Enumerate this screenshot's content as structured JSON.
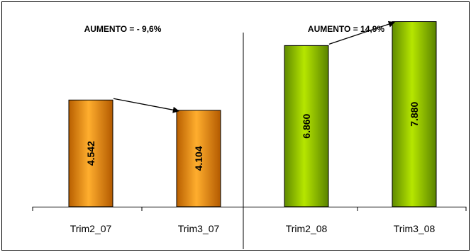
{
  "chart_data": {
    "type": "bar",
    "categories": [
      "Trim2_07",
      "Trim3_07",
      "Trim2_08",
      "Trim3_08"
    ],
    "values": [
      4542,
      4104,
      6860,
      7880
    ],
    "value_labels": [
      "4.542",
      "4.104",
      "6.860",
      "7.880"
    ],
    "groups": [
      {
        "annotation": "AUMENTO = - 9,6%",
        "categories": [
          "Trim2_07",
          "Trim3_07"
        ],
        "color": "#f08c00"
      },
      {
        "annotation": "AUMENTO = 14,9%",
        "categories": [
          "Trim2_08",
          "Trim3_08"
        ],
        "color": "#8cc000"
      }
    ],
    "title": "",
    "xlabel": "",
    "ylabel": "",
    "ylim": [
      0,
      8800
    ],
    "grid": false,
    "legend": "none"
  }
}
